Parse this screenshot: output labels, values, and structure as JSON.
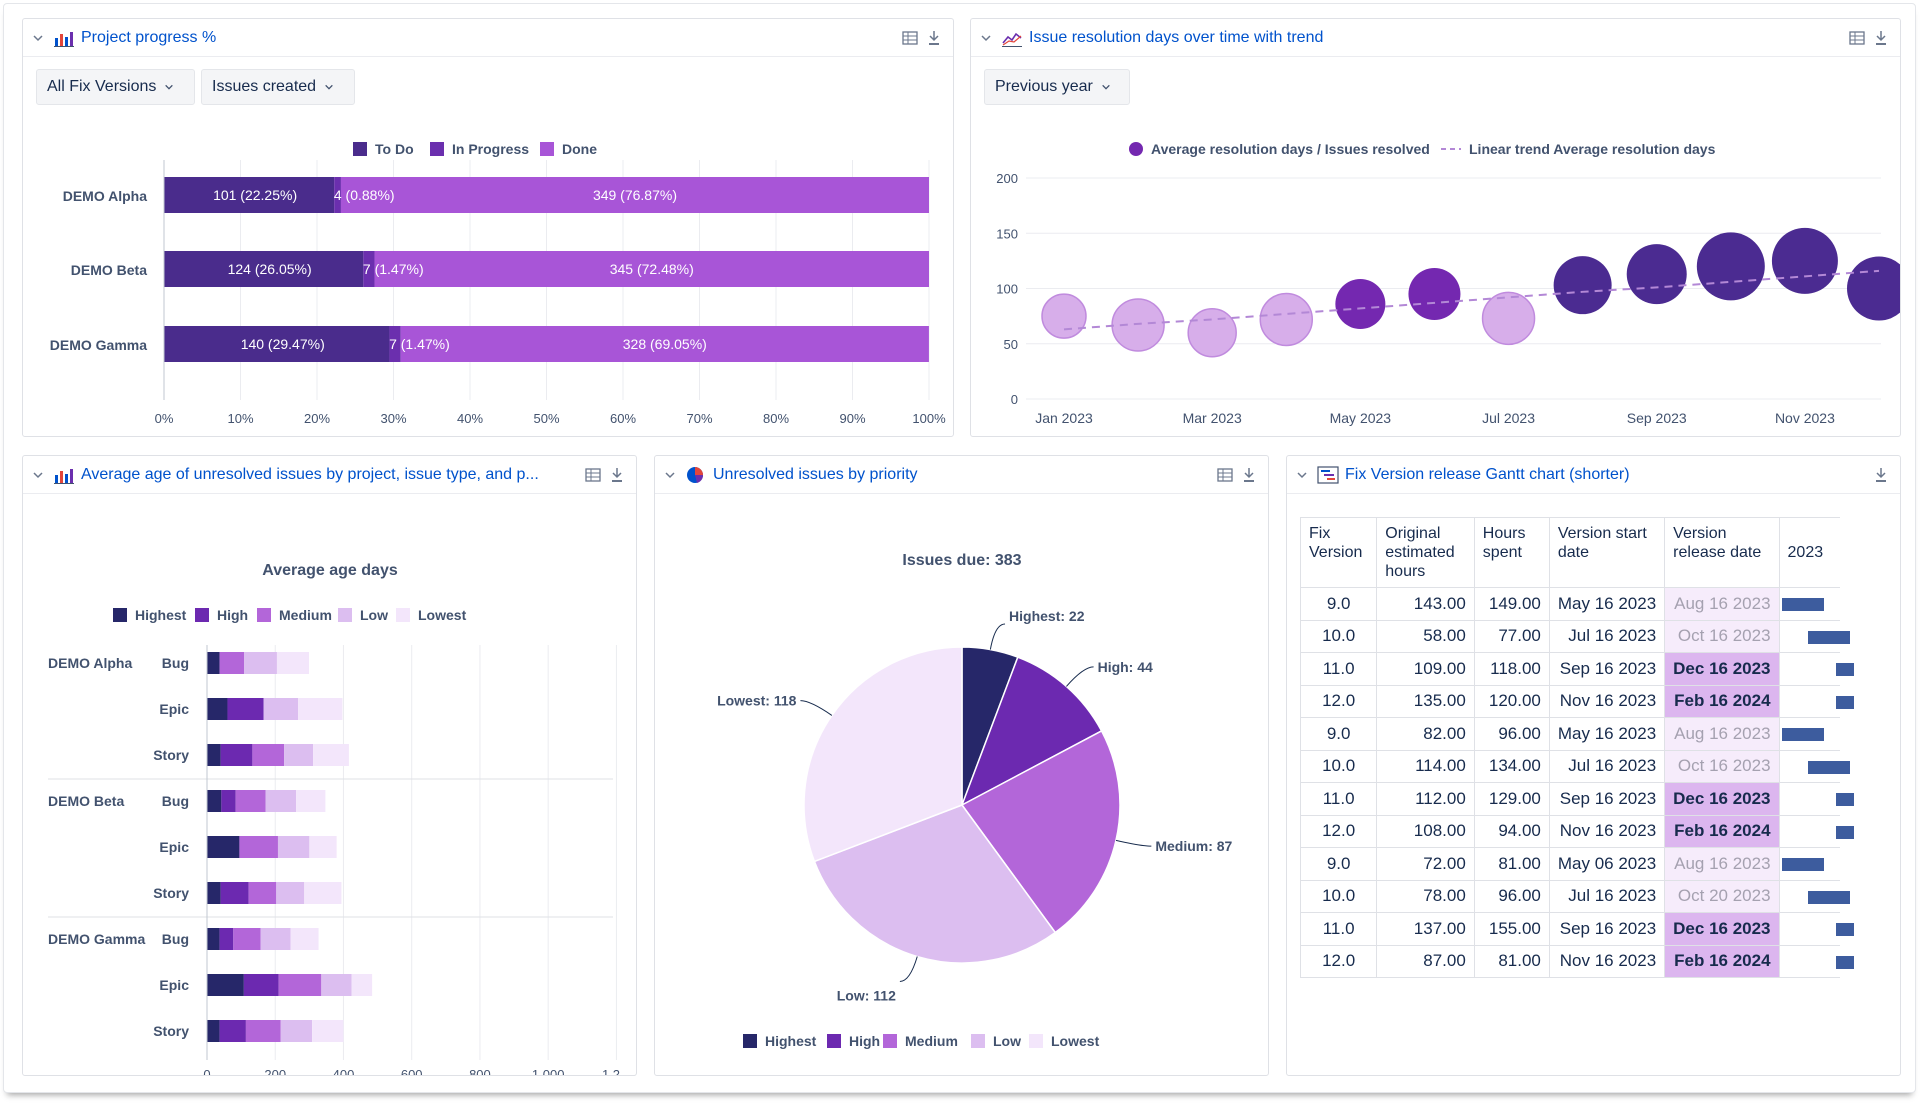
{
  "colors": {
    "todo": "#4a2c8c",
    "inprogress": "#6b2fae",
    "done": "#a855d7",
    "highest": "#262769",
    "high": "#6c29b0",
    "medium": "#b366d9",
    "low": "#dcbef0",
    "lowest": "#f3e6fb",
    "bubble_light": "#d7aeea",
    "bubble_mid": "#7428b0",
    "bubble_dark": "#4b2b91"
  },
  "panels": {
    "progress": {
      "title": "Project progress %",
      "icon": "bar-chart-icon",
      "filters": [
        "All Fix Versions",
        "Issues created"
      ]
    },
    "resolution": {
      "title": "Issue resolution days over time with trend",
      "icon": "line-chart-icon",
      "filters": [
        "Previous year"
      ]
    },
    "avg_age": {
      "title": "Average age of unresolved issues by project, issue type, and p...",
      "icon": "bar-chart-icon"
    },
    "priority": {
      "title": "Unresolved issues by priority",
      "icon": "pie-chart-icon"
    },
    "gantt": {
      "title": "Fix Version release Gantt chart (shorter)",
      "icon": "gantt-icon",
      "headers": [
        "Fix Version",
        "Original estimated hours",
        "Hours spent",
        "Version start date",
        "Version release date",
        "2023"
      ],
      "rows": [
        {
          "version": "9.0",
          "estimated": "143.00",
          "spent": "149.00",
          "start": "May 16 2023",
          "release": "Aug 16 2023",
          "status": "past"
        },
        {
          "version": "10.0",
          "estimated": "58.00",
          "spent": "77.00",
          "start": "Jul 16 2023",
          "release": "Oct 16 2023",
          "status": "past"
        },
        {
          "version": "11.0",
          "estimated": "109.00",
          "spent": "118.00",
          "start": "Sep 16 2023",
          "release": "Dec 16 2023",
          "status": "future"
        },
        {
          "version": "12.0",
          "estimated": "135.00",
          "spent": "120.00",
          "start": "Nov 16 2023",
          "release": "Feb 16 2024",
          "status": "future"
        },
        {
          "version": "9.0",
          "estimated": "82.00",
          "spent": "96.00",
          "start": "May 16 2023",
          "release": "Aug 16 2023",
          "status": "past"
        },
        {
          "version": "10.0",
          "estimated": "114.00",
          "spent": "134.00",
          "start": "Jul 16 2023",
          "release": "Oct 16 2023",
          "status": "past"
        },
        {
          "version": "11.0",
          "estimated": "112.00",
          "spent": "129.00",
          "start": "Sep 16 2023",
          "release": "Dec 16 2023",
          "status": "future"
        },
        {
          "version": "12.0",
          "estimated": "108.00",
          "spent": "94.00",
          "start": "Nov 16 2023",
          "release": "Feb 16 2024",
          "status": "future"
        },
        {
          "version": "9.0",
          "estimated": "72.00",
          "spent": "81.00",
          "start": "May 06 2023",
          "release": "Aug 16 2023",
          "status": "past"
        },
        {
          "version": "10.0",
          "estimated": "78.00",
          "spent": "96.00",
          "start": "Jul 16 2023",
          "release": "Oct 20 2023",
          "status": "past"
        },
        {
          "version": "11.0",
          "estimated": "137.00",
          "spent": "155.00",
          "start": "Sep 16 2023",
          "release": "Dec 16 2023",
          "status": "future"
        },
        {
          "version": "12.0",
          "estimated": "87.00",
          "spent": "81.00",
          "start": "Nov 16 2023",
          "release": "Feb 16 2024",
          "status": "future"
        }
      ]
    }
  },
  "chart_data": [
    {
      "id": "progress",
      "type": "bar",
      "orientation": "horizontal-stacked-percent",
      "categories": [
        "DEMO Alpha",
        "DEMO Beta",
        "DEMO Gamma"
      ],
      "series": [
        {
          "name": "To Do",
          "color_key": "todo",
          "values": [
            22.25,
            26.05,
            29.47
          ],
          "labels": [
            "101 (22.25%)",
            "124 (26.05%)",
            "140 (29.47%)"
          ]
        },
        {
          "name": "In Progress",
          "color_key": "inprogress",
          "values": [
            0.88,
            1.47,
            1.47
          ],
          "labels": [
            "4 (0.88%)",
            "7 (1.47%)",
            "7 (1.47%)"
          ]
        },
        {
          "name": "Done",
          "color_key": "done",
          "values": [
            76.87,
            72.48,
            69.05
          ],
          "labels": [
            "349 (76.87%)",
            "345 (72.48%)",
            "328 (69.05%)"
          ]
        }
      ],
      "xticks": [
        "0%",
        "10%",
        "20%",
        "30%",
        "40%",
        "50%",
        "60%",
        "70%",
        "80%",
        "90%",
        "100%"
      ],
      "xlim": [
        0,
        100
      ],
      "legend": "top"
    },
    {
      "id": "resolution",
      "type": "scatter",
      "subtype": "bubble-with-trend",
      "x": [
        "Jan 2023",
        "Feb 2023",
        "Mar 2023",
        "Apr 2023",
        "May 2023",
        "Jun 2023",
        "Jul 2023",
        "Aug 2023",
        "Sep 2023",
        "Oct 2023",
        "Nov 2023",
        "Dec 2023"
      ],
      "xticks": [
        "Jan 2023",
        "Mar 2023",
        "May 2023",
        "Jul 2023",
        "Sep 2023",
        "Nov 2023"
      ],
      "yticks": [
        "0",
        "50",
        "100",
        "150",
        "200"
      ],
      "ylim": [
        0,
        200
      ],
      "series": [
        {
          "name": "Average resolution days / Issues resolved",
          "values": [
            75,
            67,
            60,
            72,
            86,
            95,
            73,
            103,
            113,
            120,
            125,
            100
          ],
          "issues_resolved": [
            20,
            24,
            22,
            24,
            23,
            24,
            24,
            27,
            28,
            32,
            31,
            30
          ],
          "color_keys": [
            "bubble_light",
            "bubble_light",
            "bubble_light",
            "bubble_light",
            "bubble_mid",
            "bubble_mid",
            "bubble_light",
            "bubble_dark",
            "bubble_dark",
            "bubble_dark",
            "bubble_dark",
            "bubble_dark"
          ]
        },
        {
          "name": "Linear trend Average resolution days",
          "values": [
            63,
            68,
            72,
            77,
            82,
            87,
            92,
            97,
            101,
            106,
            111,
            116
          ]
        }
      ],
      "legend": "top"
    },
    {
      "id": "avg_age",
      "type": "bar",
      "orientation": "horizontal-stacked",
      "title": "Average age days",
      "groups": [
        "DEMO Alpha",
        "DEMO Beta",
        "DEMO Gamma"
      ],
      "categories": [
        "Bug",
        "Epic",
        "Story",
        "Bug",
        "Epic",
        "Story",
        "Bug",
        "Epic",
        "Story"
      ],
      "series": [
        {
          "name": "Highest",
          "color_key": "highest",
          "values": [
            37,
            60,
            40,
            42,
            95,
            40,
            37,
            108,
            37
          ]
        },
        {
          "name": "High",
          "color_key": "high",
          "values": [
            0,
            106,
            93,
            42,
            0,
            82,
            40,
            102,
            77
          ]
        },
        {
          "name": "Medium",
          "color_key": "medium",
          "values": [
            72,
            0,
            93,
            88,
            113,
            81,
            80,
            125,
            102
          ]
        },
        {
          "name": "Low",
          "color_key": "low",
          "values": [
            96,
            101,
            85,
            89,
            92,
            82,
            88,
            89,
            92
          ]
        },
        {
          "name": "Lowest",
          "color_key": "lowest",
          "values": [
            94,
            130,
            105,
            86,
            80,
            109,
            82,
            60,
            92
          ]
        }
      ],
      "xticks": [
        "0",
        "200",
        "400",
        "600",
        "800",
        "1,000",
        "1,2..."
      ],
      "xlim": [
        0,
        1200
      ],
      "legend": "top"
    },
    {
      "id": "priority",
      "type": "pie",
      "title": "Issues due: 383",
      "labels": [
        "Highest",
        "High",
        "Medium",
        "Low",
        "Lowest"
      ],
      "values": [
        22,
        44,
        87,
        112,
        118
      ],
      "color_keys": [
        "highest",
        "high",
        "medium",
        "low",
        "lowest"
      ],
      "slice_labels": [
        "Highest: 22",
        "High: 44",
        "Medium: 87",
        "Low: 112",
        "Lowest: 118"
      ],
      "legend": "bottom"
    }
  ]
}
